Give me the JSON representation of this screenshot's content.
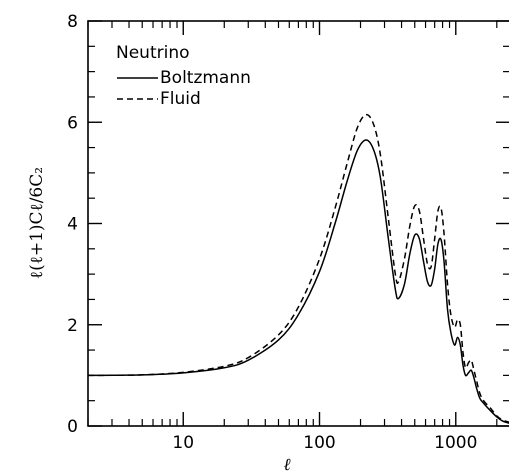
{
  "chart_data": {
    "type": "line",
    "title": "",
    "xlabel": "ℓ",
    "ylabel": "ℓ(ℓ+1)Cℓ/6C₂",
    "xscale": "log",
    "xlim": [
      2,
      2500
    ],
    "ylim": [
      0,
      8
    ],
    "x_ticks": [
      10,
      100,
      1000
    ],
    "x_tick_labels": [
      "10",
      "100",
      "1000"
    ],
    "y_ticks": [
      0,
      2,
      4,
      6,
      8
    ],
    "y_tick_labels": [
      "0",
      "2",
      "4",
      "6",
      "8"
    ],
    "legend": {
      "title": "Neutrino",
      "placement": "top-left",
      "entries": [
        "Boltzmann",
        "Fluid"
      ]
    },
    "series": [
      {
        "name": "Boltzmann",
        "style": "solid",
        "x": [
          2,
          5,
          10,
          20,
          30,
          50,
          70,
          100,
          130,
          160,
          190,
          220,
          250,
          280,
          320,
          360,
          380,
          420,
          460,
          500,
          540,
          580,
          620,
          660,
          700,
          740,
          780,
          820,
          870,
          920,
          980,
          1030,
          1080,
          1130,
          1180,
          1240,
          1300,
          1360,
          1420,
          1500,
          1600,
          1800,
          2000,
          2200,
          2500
        ],
        "values": [
          1.0,
          1.01,
          1.05,
          1.15,
          1.3,
          1.7,
          2.2,
          3.05,
          4.0,
          4.85,
          5.45,
          5.65,
          5.45,
          4.9,
          3.7,
          2.7,
          2.52,
          2.8,
          3.4,
          3.77,
          3.7,
          3.25,
          2.85,
          2.78,
          3.1,
          3.6,
          3.68,
          3.25,
          2.3,
          1.85,
          1.6,
          1.75,
          1.6,
          1.2,
          1.0,
          1.05,
          1.1,
          0.95,
          0.75,
          0.55,
          0.45,
          0.3,
          0.18,
          0.1,
          0.05
        ]
      },
      {
        "name": "Fluid",
        "style": "dashed",
        "x": [
          2,
          5,
          10,
          20,
          30,
          50,
          70,
          100,
          130,
          160,
          190,
          220,
          250,
          280,
          320,
          360,
          380,
          420,
          460,
          500,
          540,
          580,
          620,
          660,
          700,
          740,
          780,
          820,
          870,
          920,
          980,
          1030,
          1080,
          1130,
          1180,
          1240,
          1300,
          1360,
          1420,
          1500,
          1600,
          1800,
          2000,
          2200,
          2500
        ],
        "values": [
          1.0,
          1.01,
          1.06,
          1.18,
          1.35,
          1.8,
          2.35,
          3.3,
          4.3,
          5.2,
          5.9,
          6.15,
          5.95,
          5.35,
          4.1,
          3.0,
          2.85,
          3.3,
          3.95,
          4.35,
          4.25,
          3.7,
          3.2,
          3.15,
          3.7,
          4.25,
          4.3,
          3.8,
          2.8,
          2.2,
          1.95,
          2.1,
          2.0,
          1.45,
          1.15,
          1.25,
          1.3,
          1.1,
          0.9,
          0.65,
          0.5,
          0.35,
          0.2,
          0.12,
          0.07
        ]
      }
    ]
  }
}
